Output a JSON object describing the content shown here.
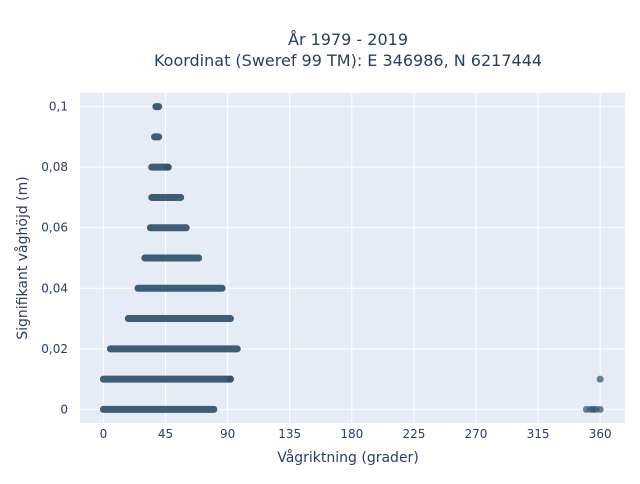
{
  "chart_data": {
    "type": "scatter",
    "title_line1": "År 1979 - 2019",
    "title_line2": "Koordinat (Sweref 99 TM): E 346986, N 6217444",
    "xlabel": "Vågriktning (grader)",
    "ylabel": "Signifikant våghöjd (m)",
    "xlim": [
      -17,
      378
    ],
    "ylim": [
      -0.0045,
      0.1045
    ],
    "x_ticks": [
      0,
      45,
      90,
      135,
      180,
      225,
      270,
      315,
      360
    ],
    "x_tick_labels": [
      "0",
      "45",
      "90",
      "135",
      "180",
      "225",
      "270",
      "315",
      "360"
    ],
    "y_ticks": [
      0,
      0.02,
      0.04,
      0.06,
      0.08,
      0.1
    ],
    "y_tick_labels": [
      "0",
      "0,02",
      "0,04",
      "0,06",
      "0,08",
      "0,1"
    ],
    "grid": true,
    "marker_color": "#2e5168",
    "background": "#e5ecf6",
    "bands": [
      {
        "y": 0.0,
        "x_min": 0,
        "x_max": 80
      },
      {
        "y": 0.01,
        "x_min": 0,
        "x_max": 92
      },
      {
        "y": 0.02,
        "x_min": 5,
        "x_max": 97
      },
      {
        "y": 0.03,
        "x_min": 18,
        "x_max": 92
      },
      {
        "y": 0.04,
        "x_min": 25,
        "x_max": 86
      },
      {
        "y": 0.05,
        "x_min": 30,
        "x_max": 69
      },
      {
        "y": 0.06,
        "x_min": 34,
        "x_max": 60
      },
      {
        "y": 0.07,
        "x_min": 35,
        "x_max": 56
      },
      {
        "y": 0.08,
        "x_min": 35,
        "x_max": 47
      },
      {
        "y": 0.09,
        "x_min": 37,
        "x_max": 40
      },
      {
        "y": 0.1,
        "x_min": 38,
        "x_max": 40
      }
    ],
    "points": [
      {
        "x": 46,
        "y": 0.08
      },
      {
        "x": 92,
        "y": 0.01
      },
      {
        "x": 350,
        "y": 0.0
      },
      {
        "x": 353,
        "y": 0.0
      },
      {
        "x": 355,
        "y": 0.0
      },
      {
        "x": 357,
        "y": 0.0
      },
      {
        "x": 360,
        "y": 0.0
      },
      {
        "x": 360,
        "y": 0.01
      }
    ]
  }
}
